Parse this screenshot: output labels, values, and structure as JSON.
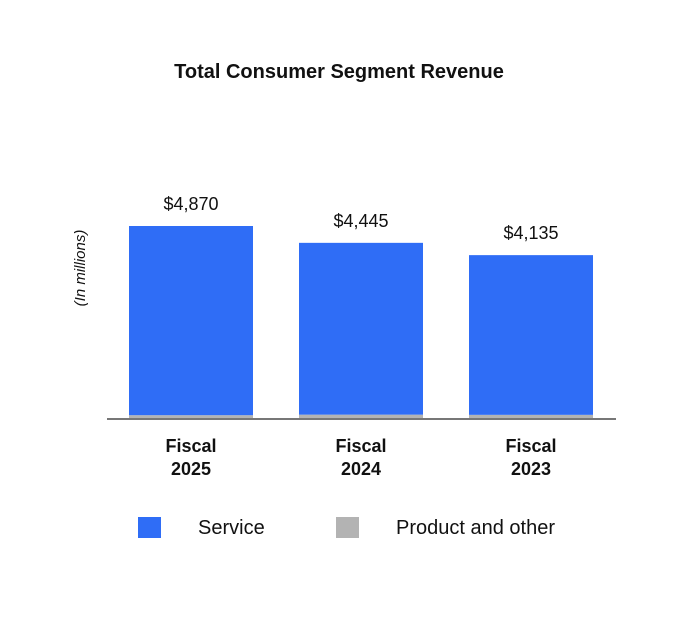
{
  "chart_data": {
    "type": "bar",
    "stacked": true,
    "title": "Total Consumer Segment Revenue",
    "xlabel": "",
    "ylabel": "(In millions)",
    "categories": [
      [
        "Fiscal",
        "2025"
      ],
      [
        "Fiscal",
        "2024"
      ],
      [
        "Fiscal",
        "2023"
      ]
    ],
    "series": [
      {
        "name": "Service",
        "color": "#2F6DF6",
        "values": [
          4774,
          4335,
          4030
        ]
      },
      {
        "name": "Product and other",
        "color": "#B3B3B3",
        "values": [
          96,
          110,
          105
        ]
      }
    ],
    "totals": [
      4870,
      4445,
      4135
    ],
    "total_labels": [
      "$4,870",
      "$4,445",
      "$4,135"
    ],
    "ylim": [
      0,
      5000
    ],
    "grid": false,
    "legend_position": "bottom"
  }
}
